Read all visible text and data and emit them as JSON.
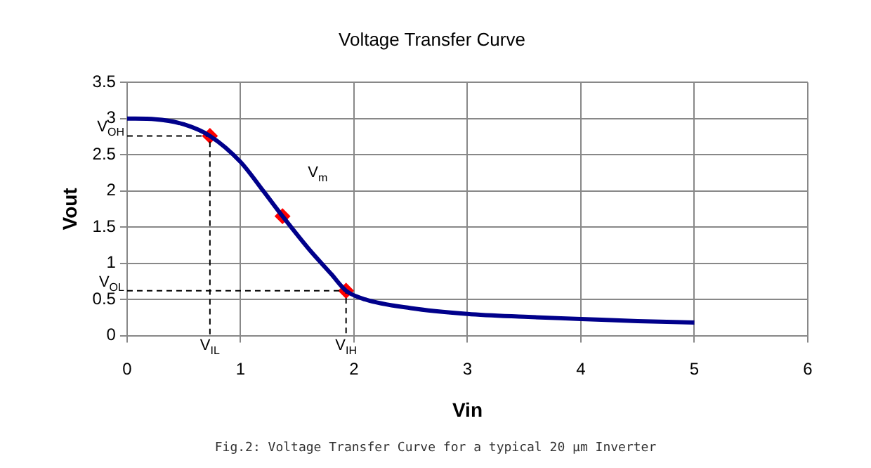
{
  "chart_data": {
    "type": "line",
    "title": "Voltage Transfer Curve",
    "xlabel": "Vin",
    "ylabel": "Vout",
    "xlim": [
      0,
      6
    ],
    "xticks": [
      0,
      1,
      2,
      3,
      4,
      5,
      6
    ],
    "ylim": [
      0,
      3.5
    ],
    "yticks": [
      0,
      0.5,
      1,
      1.5,
      2,
      2.5,
      3,
      3.5
    ],
    "grid": true,
    "legend": false,
    "series": [
      {
        "color": "#00008b",
        "marker": "none",
        "line_style": "solid",
        "x": [
          0,
          0.25,
          0.5,
          0.73,
          1.0,
          1.2,
          1.37,
          1.6,
          1.8,
          1.93,
          2.1,
          2.5,
          3,
          3.5,
          4,
          4.5,
          5
        ],
        "values": [
          3.0,
          2.99,
          2.92,
          2.76,
          2.4,
          2.0,
          1.65,
          1.2,
          0.85,
          0.62,
          0.5,
          0.38,
          0.3,
          0.26,
          0.23,
          0.2,
          0.18
        ]
      },
      {
        "type": "line",
        "color": "#000000",
        "marker": "none",
        "line_style": "dashed",
        "x": [
          0,
          0.73,
          0.73
        ],
        "values": [
          2.76,
          2.76,
          0
        ]
      },
      {
        "type": "line",
        "color": "#000000",
        "marker": "none",
        "line_style": "dashed",
        "x": [
          0,
          1.93,
          1.93
        ],
        "values": [
          0.62,
          0.62,
          0
        ]
      },
      {
        "type": "scatter",
        "color": "#ff0000",
        "marker": "diamond",
        "x": [
          0.73,
          1.37,
          1.93
        ],
        "values": [
          2.76,
          1.65,
          0.62
        ]
      }
    ],
    "annotations": [
      {
        "text": "V$_{OH}$",
        "x": 0,
        "y": 2.76
      },
      {
        "text": "V$_{OL}$",
        "x": 0,
        "y": 0.62
      },
      {
        "text": "V$_{IL}$",
        "x": 0.73,
        "y": 0
      },
      {
        "text": "V$_{IH}$",
        "x": 1.93,
        "y": 0
      },
      {
        "text": "V$_{m}$",
        "x": 1.37,
        "y": 1.65
      },
      "Fig.2: Voltage Transfer Curve for a typical 20 µm Inverter"
    ]
  }
}
